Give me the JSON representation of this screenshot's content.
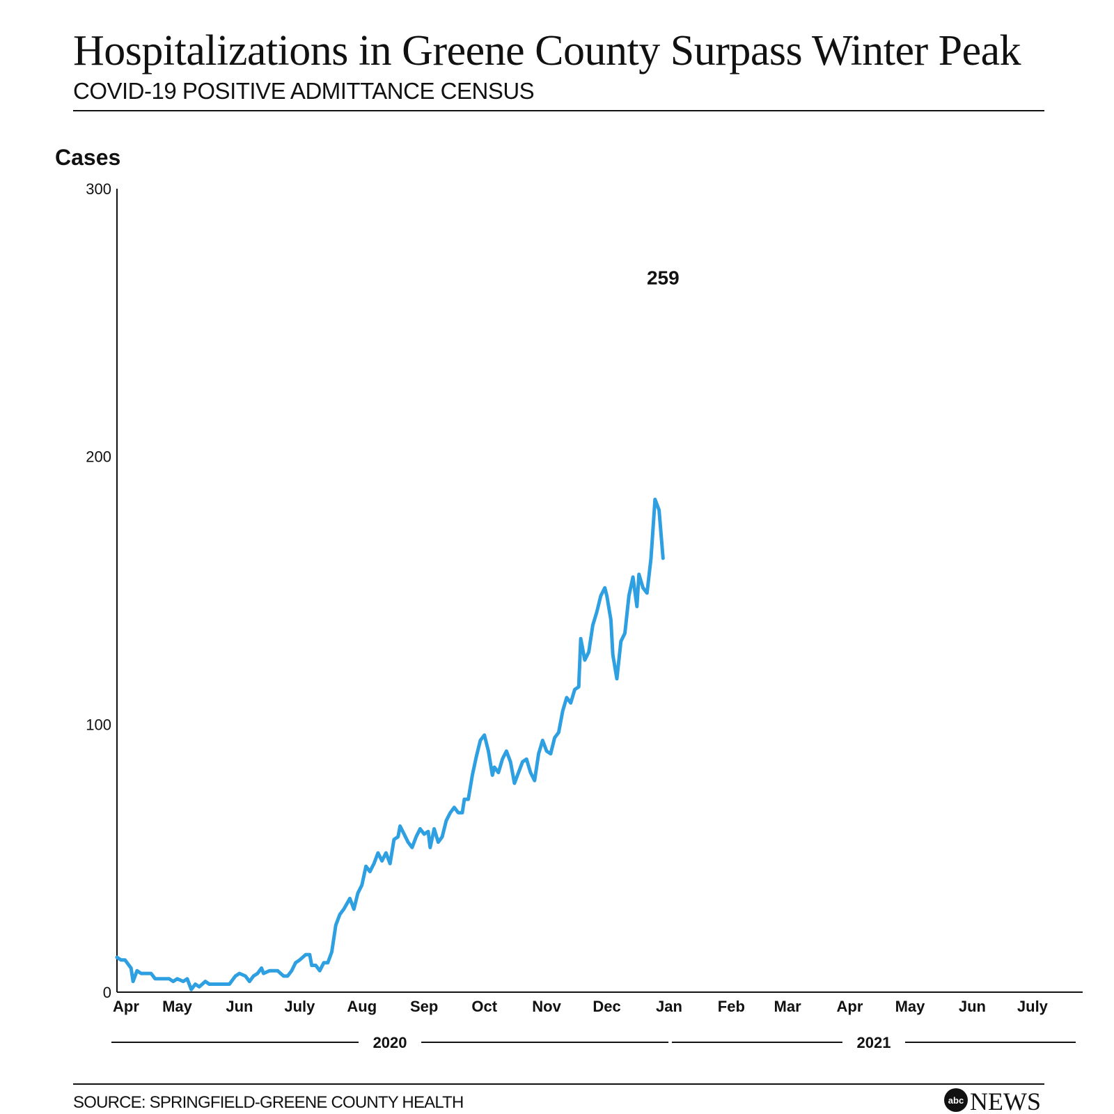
{
  "title": "Hospitalizations in Greene County Surpass Winter Peak",
  "subtitle": "COVID-19 POSITIVE ADMITTANCE CENSUS",
  "source": "SOURCE: SPRINGFIELD-GREENE COUNTY HEALTH",
  "brand": {
    "logo_text": "NEWS",
    "logo_badge": "abc"
  },
  "colors": {
    "line": "#2e9fe0",
    "axis": "#111111"
  },
  "chart_data": {
    "type": "line",
    "ylabel": "Cases",
    "ylim": [
      0,
      300
    ],
    "y_ticks": [
      0,
      100,
      200,
      300
    ],
    "x_axis": "date",
    "x_range": [
      "2020-04-01",
      "2021-07-26"
    ],
    "month_ticks": [
      {
        "label": "Apr",
        "date": "2020-04-01"
      },
      {
        "label": "May",
        "date": "2020-05-01"
      },
      {
        "label": "Jun",
        "date": "2020-06-01"
      },
      {
        "label": "July",
        "date": "2020-07-01"
      },
      {
        "label": "Aug",
        "date": "2020-08-01"
      },
      {
        "label": "Sep",
        "date": "2020-09-01"
      },
      {
        "label": "Oct",
        "date": "2020-10-01"
      },
      {
        "label": "Nov",
        "date": "2020-11-01"
      },
      {
        "label": "Dec",
        "date": "2020-12-01"
      },
      {
        "label": "Jan",
        "date": "2021-01-01"
      },
      {
        "label": "Feb",
        "date": "2021-02-01"
      },
      {
        "label": "Mar",
        "date": "2021-03-01"
      },
      {
        "label": "Apr",
        "date": "2021-04-01"
      },
      {
        "label": "May",
        "date": "2021-05-01"
      },
      {
        "label": "Jun",
        "date": "2021-06-01"
      },
      {
        "label": "July",
        "date": "2021-07-01"
      }
    ],
    "year_labels": [
      {
        "label": "2020",
        "start": "2020-04-01",
        "end": "2020-12-31"
      },
      {
        "label": "2021",
        "start": "2021-01-01",
        "end": "2021-07-26"
      }
    ],
    "end_label": "259",
    "grid": false,
    "series": [
      {
        "points": [
          [
            "2020-04-01",
            13
          ],
          [
            "2020-04-03",
            12
          ],
          [
            "2020-04-05",
            12
          ],
          [
            "2020-04-08",
            9
          ],
          [
            "2020-04-09",
            4
          ],
          [
            "2020-04-11",
            8
          ],
          [
            "2020-04-13",
            7
          ],
          [
            "2020-04-18",
            7
          ],
          [
            "2020-04-20",
            5
          ],
          [
            "2020-04-27",
            5
          ],
          [
            "2020-04-29",
            4
          ],
          [
            "2020-05-01",
            5
          ],
          [
            "2020-05-04",
            4
          ],
          [
            "2020-05-06",
            5
          ],
          [
            "2020-05-08",
            1
          ],
          [
            "2020-05-10",
            3
          ],
          [
            "2020-05-12",
            2
          ],
          [
            "2020-05-15",
            4
          ],
          [
            "2020-05-17",
            3
          ],
          [
            "2020-05-27",
            3
          ],
          [
            "2020-05-30",
            6
          ],
          [
            "2020-06-01",
            7
          ],
          [
            "2020-06-04",
            6
          ],
          [
            "2020-06-06",
            4
          ],
          [
            "2020-06-08",
            6
          ],
          [
            "2020-06-10",
            7
          ],
          [
            "2020-06-12",
            9
          ],
          [
            "2020-06-13",
            7
          ],
          [
            "2020-06-16",
            8
          ],
          [
            "2020-06-20",
            8
          ],
          [
            "2020-06-23",
            6
          ],
          [
            "2020-06-25",
            6
          ],
          [
            "2020-06-27",
            8
          ],
          [
            "2020-06-29",
            11
          ],
          [
            "2020-07-01",
            12
          ],
          [
            "2020-07-04",
            14
          ],
          [
            "2020-07-06",
            14
          ],
          [
            "2020-07-07",
            10
          ],
          [
            "2020-07-09",
            10
          ],
          [
            "2020-07-11",
            8
          ],
          [
            "2020-07-13",
            11
          ],
          [
            "2020-07-15",
            11
          ],
          [
            "2020-07-17",
            15
          ],
          [
            "2020-07-19",
            25
          ],
          [
            "2020-07-21",
            29
          ],
          [
            "2020-07-23",
            31
          ],
          [
            "2020-07-26",
            35
          ],
          [
            "2020-07-28",
            31
          ],
          [
            "2020-07-30",
            37
          ],
          [
            "2020-08-01",
            40
          ],
          [
            "2020-08-03",
            47
          ],
          [
            "2020-08-05",
            45
          ],
          [
            "2020-08-07",
            48
          ],
          [
            "2020-08-09",
            52
          ],
          [
            "2020-08-11",
            49
          ],
          [
            "2020-08-13",
            52
          ],
          [
            "2020-08-15",
            48
          ],
          [
            "2020-08-17",
            57
          ],
          [
            "2020-08-19",
            58
          ],
          [
            "2020-08-20",
            62
          ],
          [
            "2020-08-22",
            59
          ],
          [
            "2020-08-24",
            56
          ],
          [
            "2020-08-26",
            54
          ],
          [
            "2020-08-28",
            58
          ],
          [
            "2020-08-30",
            61
          ],
          [
            "2020-09-01",
            59
          ],
          [
            "2020-09-03",
            60
          ],
          [
            "2020-09-04",
            54
          ],
          [
            "2020-09-06",
            61
          ],
          [
            "2020-09-08",
            56
          ],
          [
            "2020-09-10",
            58
          ],
          [
            "2020-09-12",
            64
          ],
          [
            "2020-09-14",
            67
          ],
          [
            "2020-09-16",
            69
          ],
          [
            "2020-09-18",
            67
          ],
          [
            "2020-09-20",
            67
          ],
          [
            "2020-09-21",
            72
          ],
          [
            "2020-09-23",
            72
          ],
          [
            "2020-09-25",
            81
          ],
          [
            "2020-09-27",
            88
          ],
          [
            "2020-09-29",
            94
          ],
          [
            "2020-10-01",
            96
          ],
          [
            "2020-10-03",
            90
          ],
          [
            "2020-10-05",
            81
          ],
          [
            "2020-10-06",
            84
          ],
          [
            "2020-10-08",
            82
          ],
          [
            "2020-10-10",
            87
          ],
          [
            "2020-10-12",
            90
          ],
          [
            "2020-10-14",
            86
          ],
          [
            "2020-10-16",
            78
          ],
          [
            "2020-10-18",
            82
          ],
          [
            "2020-10-20",
            86
          ],
          [
            "2020-10-22",
            87
          ],
          [
            "2020-10-24",
            82
          ],
          [
            "2020-10-26",
            79
          ],
          [
            "2020-10-28",
            89
          ],
          [
            "2020-10-30",
            94
          ],
          [
            "2020-11-01",
            90
          ],
          [
            "2020-11-03",
            89
          ],
          [
            "2020-11-05",
            95
          ],
          [
            "2020-11-07",
            97
          ],
          [
            "2020-11-09",
            105
          ],
          [
            "2020-11-11",
            110
          ],
          [
            "2020-11-13",
            108
          ],
          [
            "2020-11-15",
            113
          ],
          [
            "2020-11-17",
            114
          ],
          [
            "2020-11-18",
            132
          ],
          [
            "2020-11-20",
            124
          ],
          [
            "2020-11-22",
            127
          ],
          [
            "2020-11-24",
            137
          ],
          [
            "2020-11-26",
            142
          ],
          [
            "2020-11-28",
            148
          ],
          [
            "2020-11-30",
            151
          ],
          [
            "2020-12-01",
            148
          ],
          [
            "2020-12-03",
            139
          ],
          [
            "2020-12-04",
            126
          ],
          [
            "2020-12-06",
            117
          ],
          [
            "2020-12-08",
            131
          ],
          [
            "2020-12-10",
            134
          ],
          [
            "2020-12-12",
            148
          ],
          [
            "2020-12-14",
            155
          ],
          [
            "2020-12-16",
            144
          ],
          [
            "2020-12-17",
            156
          ],
          [
            "2020-12-19",
            151
          ],
          [
            "2020-12-21",
            149
          ],
          [
            "2020-12-23",
            162
          ],
          [
            "2020-12-25",
            184
          ],
          [
            "2020-12-27",
            180
          ],
          [
            "2020-12-29",
            162
          ]
        ]
      }
    ]
  }
}
